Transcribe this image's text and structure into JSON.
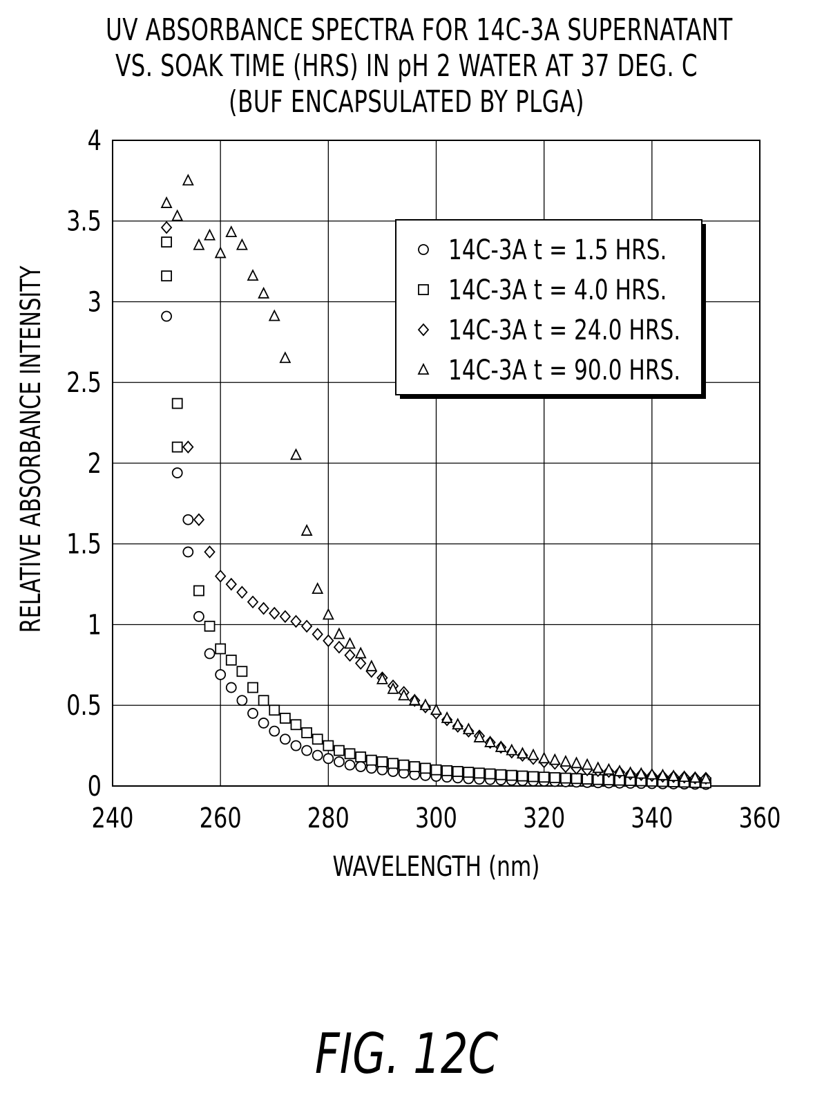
{
  "chart_data": {
    "type": "scatter",
    "title_lines": [
      "UV ABSORBANCE SPECTRA FOR 14C-3A SUPERNATANT",
      "VS. SOAK TIME (HRS) IN pH 2 WATER AT 37 DEG. C",
      "(BUF ENCAPSULATED BY PLGA)"
    ],
    "xlabel": "WAVELENGTH (nm)",
    "ylabel": "RELATIVE ABSORBANCE INTENSITY",
    "xlim": [
      240,
      360
    ],
    "ylim": [
      0,
      4
    ],
    "xticks": [
      "240",
      "260",
      "280",
      "300",
      "320",
      "340",
      "360"
    ],
    "yticks": [
      "0",
      "0.5",
      "1",
      "1.5",
      "2",
      "2.5",
      "3",
      "3.5",
      "4"
    ],
    "grid": true,
    "legend_position": "top-right",
    "series": [
      {
        "name": "14C-3A t = 1.5 HRS.",
        "marker": "circle",
        "points": [
          [
            250,
            2.91
          ],
          [
            252,
            1.94
          ],
          [
            254,
            1.65
          ],
          [
            254,
            1.45
          ],
          [
            256,
            1.05
          ],
          [
            258,
            0.82
          ],
          [
            260,
            0.69
          ],
          [
            262,
            0.61
          ],
          [
            264,
            0.53
          ],
          [
            266,
            0.45
          ],
          [
            268,
            0.39
          ],
          [
            270,
            0.34
          ],
          [
            272,
            0.29
          ],
          [
            274,
            0.25
          ],
          [
            276,
            0.22
          ],
          [
            278,
            0.19
          ],
          [
            280,
            0.17
          ],
          [
            282,
            0.15
          ],
          [
            284,
            0.13
          ],
          [
            286,
            0.12
          ],
          [
            288,
            0.11
          ],
          [
            290,
            0.1
          ],
          [
            292,
            0.09
          ],
          [
            294,
            0.08
          ],
          [
            296,
            0.07
          ],
          [
            298,
            0.065
          ],
          [
            300,
            0.06
          ],
          [
            302,
            0.055
          ],
          [
            304,
            0.05
          ],
          [
            306,
            0.045
          ],
          [
            308,
            0.042
          ],
          [
            310,
            0.04
          ],
          [
            312,
            0.038
          ],
          [
            314,
            0.035
          ],
          [
            316,
            0.033
          ],
          [
            318,
            0.031
          ],
          [
            320,
            0.03
          ],
          [
            322,
            0.028
          ],
          [
            324,
            0.026
          ],
          [
            326,
            0.024
          ],
          [
            328,
            0.022
          ],
          [
            330,
            0.02
          ],
          [
            332,
            0.019
          ],
          [
            334,
            0.018
          ],
          [
            336,
            0.017
          ],
          [
            338,
            0.016
          ],
          [
            340,
            0.015
          ],
          [
            342,
            0.014
          ],
          [
            344,
            0.013
          ],
          [
            346,
            0.012
          ],
          [
            348,
            0.011
          ],
          [
            350,
            0.01
          ]
        ]
      },
      {
        "name": "14C-3A t = 4.0 HRS.",
        "marker": "square",
        "points": [
          [
            250,
            3.37
          ],
          [
            250,
            3.16
          ],
          [
            252,
            2.37
          ],
          [
            252,
            2.1
          ],
          [
            256,
            1.21
          ],
          [
            258,
            0.99
          ],
          [
            260,
            0.85
          ],
          [
            262,
            0.78
          ],
          [
            264,
            0.71
          ],
          [
            266,
            0.61
          ],
          [
            268,
            0.53
          ],
          [
            270,
            0.47
          ],
          [
            272,
            0.42
          ],
          [
            274,
            0.38
          ],
          [
            276,
            0.33
          ],
          [
            278,
            0.29
          ],
          [
            280,
            0.25
          ],
          [
            282,
            0.22
          ],
          [
            284,
            0.2
          ],
          [
            286,
            0.18
          ],
          [
            288,
            0.16
          ],
          [
            290,
            0.15
          ],
          [
            292,
            0.14
          ],
          [
            294,
            0.13
          ],
          [
            296,
            0.12
          ],
          [
            298,
            0.11
          ],
          [
            300,
            0.1
          ],
          [
            302,
            0.095
          ],
          [
            304,
            0.09
          ],
          [
            306,
            0.085
          ],
          [
            308,
            0.08
          ],
          [
            310,
            0.075
          ],
          [
            312,
            0.07
          ],
          [
            314,
            0.066
          ],
          [
            316,
            0.062
          ],
          [
            318,
            0.058
          ],
          [
            320,
            0.055
          ],
          [
            322,
            0.052
          ],
          [
            324,
            0.049
          ],
          [
            326,
            0.046
          ],
          [
            328,
            0.043
          ],
          [
            330,
            0.04
          ],
          [
            332,
            0.038
          ],
          [
            334,
            0.036
          ],
          [
            336,
            0.034
          ],
          [
            338,
            0.032
          ],
          [
            340,
            0.03
          ],
          [
            342,
            0.028
          ],
          [
            344,
            0.026
          ],
          [
            346,
            0.024
          ],
          [
            348,
            0.022
          ],
          [
            350,
            0.02
          ]
        ]
      },
      {
        "name": "14C-3A t = 24.0 HRS.",
        "marker": "diamond",
        "points": [
          [
            250,
            3.46
          ],
          [
            254,
            2.1
          ],
          [
            256,
            1.65
          ],
          [
            258,
            1.45
          ],
          [
            260,
            1.3
          ],
          [
            262,
            1.25
          ],
          [
            264,
            1.2
          ],
          [
            266,
            1.14
          ],
          [
            268,
            1.1
          ],
          [
            270,
            1.07
          ],
          [
            272,
            1.05
          ],
          [
            274,
            1.02
          ],
          [
            276,
            0.99
          ],
          [
            278,
            0.94
          ],
          [
            280,
            0.9
          ],
          [
            282,
            0.86
          ],
          [
            284,
            0.81
          ],
          [
            286,
            0.76
          ],
          [
            288,
            0.71
          ],
          [
            290,
            0.67
          ],
          [
            292,
            0.62
          ],
          [
            294,
            0.58
          ],
          [
            296,
            0.53
          ],
          [
            298,
            0.49
          ],
          [
            300,
            0.45
          ],
          [
            302,
            0.41
          ],
          [
            304,
            0.37
          ],
          [
            306,
            0.34
          ],
          [
            308,
            0.31
          ],
          [
            310,
            0.27
          ],
          [
            312,
            0.24
          ],
          [
            314,
            0.21
          ],
          [
            316,
            0.19
          ],
          [
            318,
            0.17
          ],
          [
            320,
            0.15
          ],
          [
            322,
            0.14
          ],
          [
            324,
            0.12
          ],
          [
            326,
            0.11
          ],
          [
            328,
            0.1
          ],
          [
            330,
            0.095
          ],
          [
            332,
            0.09
          ],
          [
            334,
            0.085
          ],
          [
            336,
            0.075
          ],
          [
            338,
            0.07
          ],
          [
            340,
            0.065
          ],
          [
            342,
            0.06
          ],
          [
            344,
            0.058
          ],
          [
            346,
            0.055
          ],
          [
            348,
            0.05
          ],
          [
            350,
            0.048
          ]
        ]
      },
      {
        "name": "14C-3A t = 90.0 HRS.",
        "marker": "triangle",
        "points": [
          [
            250,
            3.61
          ],
          [
            252,
            3.53
          ],
          [
            254,
            3.75
          ],
          [
            256,
            3.35
          ],
          [
            258,
            3.41
          ],
          [
            260,
            3.3
          ],
          [
            262,
            3.43
          ],
          [
            264,
            3.35
          ],
          [
            266,
            3.16
          ],
          [
            268,
            3.05
          ],
          [
            270,
            2.91
          ],
          [
            272,
            2.65
          ],
          [
            274,
            2.05
          ],
          [
            276,
            1.58
          ],
          [
            278,
            1.22
          ],
          [
            280,
            1.06
          ],
          [
            282,
            0.94
          ],
          [
            284,
            0.88
          ],
          [
            286,
            0.82
          ],
          [
            288,
            0.74
          ],
          [
            290,
            0.66
          ],
          [
            292,
            0.6
          ],
          [
            294,
            0.56
          ],
          [
            296,
            0.53
          ],
          [
            298,
            0.5
          ],
          [
            300,
            0.47
          ],
          [
            302,
            0.42
          ],
          [
            304,
            0.38
          ],
          [
            306,
            0.35
          ],
          [
            308,
            0.3
          ],
          [
            310,
            0.27
          ],
          [
            312,
            0.24
          ],
          [
            314,
            0.22
          ],
          [
            316,
            0.2
          ],
          [
            318,
            0.19
          ],
          [
            320,
            0.17
          ],
          [
            322,
            0.16
          ],
          [
            324,
            0.15
          ],
          [
            326,
            0.14
          ],
          [
            328,
            0.13
          ],
          [
            330,
            0.11
          ],
          [
            332,
            0.1
          ],
          [
            334,
            0.09
          ],
          [
            336,
            0.08
          ],
          [
            338,
            0.075
          ],
          [
            340,
            0.07
          ],
          [
            342,
            0.065
          ],
          [
            344,
            0.06
          ],
          [
            346,
            0.055
          ],
          [
            348,
            0.05
          ],
          [
            350,
            0.045
          ]
        ]
      }
    ]
  },
  "figure_label": "FIG. 12C"
}
